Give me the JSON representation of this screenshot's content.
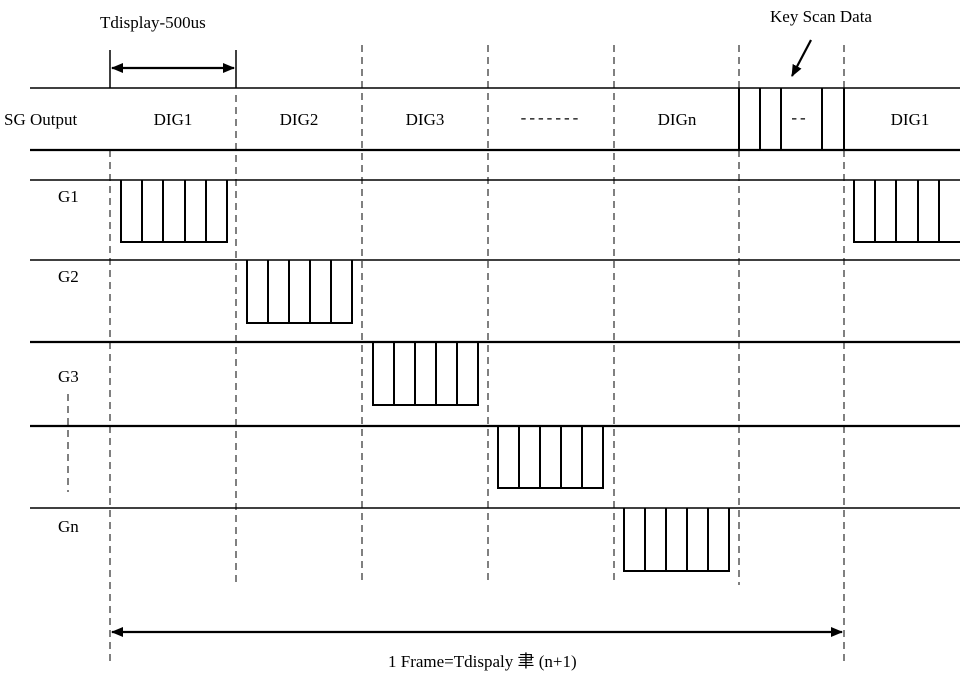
{
  "title": "Tdisplay-500us",
  "key_scan_label": "Key Scan Data",
  "sg_output_label": "SG Output",
  "dig_cells": [
    "DIG1",
    "DIG2",
    "DIG3",
    "-------",
    "DIGn",
    "--",
    "DIG1"
  ],
  "grid_labels": [
    "G1",
    "G2",
    "G3",
    "Gn"
  ],
  "frame_label": "1 Frame=Tdispaly 聿 (n+1)"
}
